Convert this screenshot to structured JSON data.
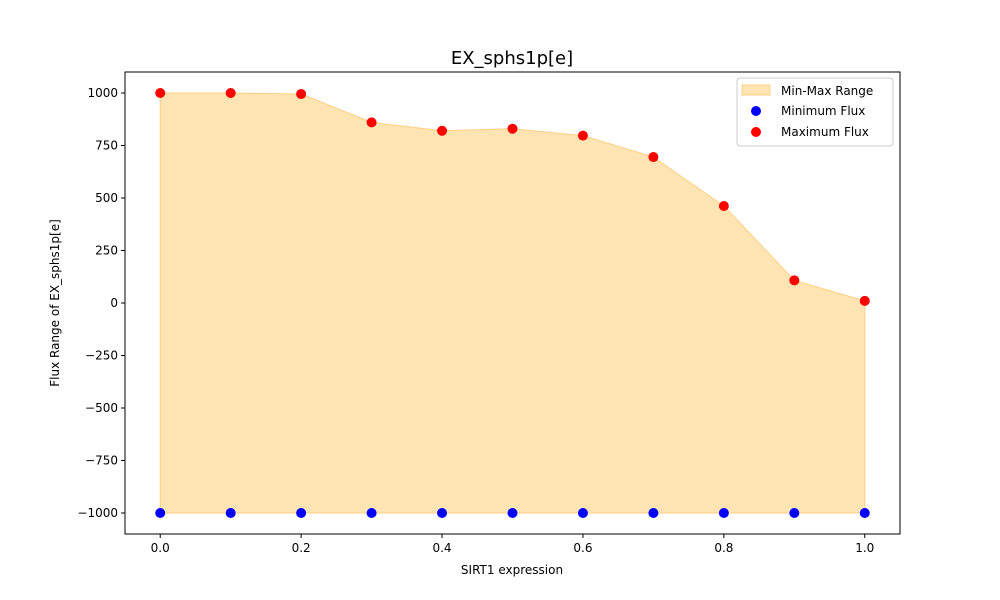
{
  "chart_data": {
    "type": "scatter",
    "title": "EX_sphs1p[e]",
    "xlabel": "SIRT1 expression",
    "ylabel": "Flux Range of EX_sphs1p[e]",
    "xlim": [
      -0.05,
      1.05
    ],
    "ylim": [
      -1100,
      1100
    ],
    "x": [
      0.0,
      0.1,
      0.2,
      0.3,
      0.4,
      0.5,
      0.6,
      0.7,
      0.8,
      0.9,
      1.0
    ],
    "series": [
      {
        "name": "Minimum Flux",
        "color": "#0000ff",
        "values": [
          -1000,
          -1000,
          -1000,
          -1000,
          -1000,
          -1000,
          -1000,
          -1000,
          -1000,
          -1000,
          -1000
        ]
      },
      {
        "name": "Maximum Flux",
        "color": "#ff0000",
        "values": [
          1000,
          1000,
          995,
          860,
          820,
          830,
          797,
          695,
          462,
          108,
          10
        ]
      }
    ],
    "range_band": {
      "name": "Min-Max Range",
      "fill": "#ffe4b3",
      "edge": "#ffcf80"
    },
    "x_ticks": [
      0.0,
      0.2,
      0.4,
      0.6,
      0.8,
      1.0
    ],
    "x_tick_labels": [
      "0.0",
      "0.2",
      "0.4",
      "0.6",
      "0.8",
      "1.0"
    ],
    "y_ticks": [
      -1000,
      -750,
      -500,
      -250,
      0,
      250,
      500,
      750,
      1000
    ],
    "y_tick_labels": [
      "−1000",
      "−750",
      "−500",
      "−250",
      "0",
      "250",
      "500",
      "750",
      "1000"
    ],
    "grid": false,
    "legend": {
      "position": "top-right",
      "entries": [
        "Min-Max Range",
        "Minimum Flux",
        "Maximum Flux"
      ]
    }
  }
}
